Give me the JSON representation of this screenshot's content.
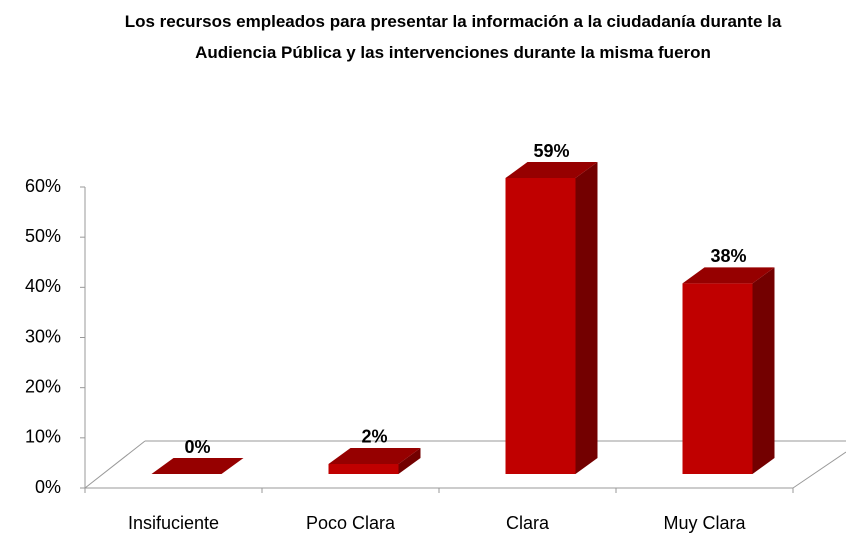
{
  "chart_data": {
    "type": "bar3d",
    "title": "Los recursos empleados para presentar la información a la ciudadanía durante la Audiencia Pública y las intervenciones durante la misma fueron",
    "categories": [
      "Insifuciente",
      "Poco Clara",
      "Clara",
      "Muy Clara"
    ],
    "values": [
      0,
      2,
      59,
      38
    ],
    "value_labels": [
      "0%",
      "2%",
      "59%",
      "38%"
    ],
    "color": "#c00000",
    "ylim": [
      0,
      60
    ],
    "yticks": [
      {
        "value": 0,
        "label": "0%"
      },
      {
        "value": 10,
        "label": "10%"
      },
      {
        "value": 20,
        "label": "20%"
      },
      {
        "value": 30,
        "label": "30%"
      },
      {
        "value": 40,
        "label": "40%"
      },
      {
        "value": 50,
        "label": "50%"
      },
      {
        "value": 60,
        "label": "60%"
      }
    ]
  }
}
